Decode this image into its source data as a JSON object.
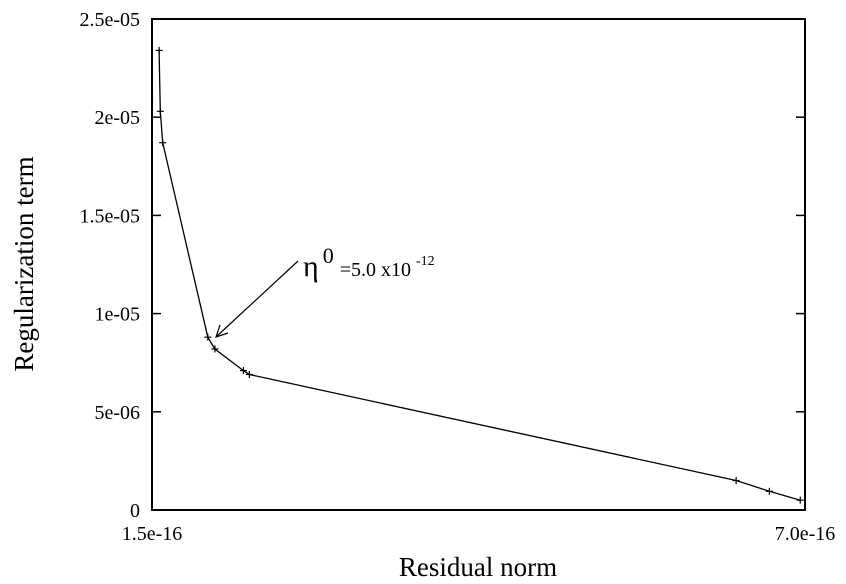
{
  "chart_data": {
    "type": "line",
    "title": "",
    "xlabel": "Residual norm",
    "ylabel": "Regularization term",
    "xlim": [
      1.5e-16,
      7e-16
    ],
    "ylim": [
      0,
      2.5e-05
    ],
    "x_ticks": [
      {
        "value": 1.5e-16,
        "label": "1.5e-16"
      },
      {
        "value": 7e-16,
        "label": "7.0e-16"
      }
    ],
    "y_ticks": [
      {
        "value": 0,
        "label": "0"
      },
      {
        "value": 5e-06,
        "label": "5e-06"
      },
      {
        "value": 1e-05,
        "label": "1e-05"
      },
      {
        "value": 1.5e-05,
        "label": "1.5e-05"
      },
      {
        "value": 2e-05,
        "label": "2e-05"
      },
      {
        "value": 2.5e-05,
        "label": "2.5e-05"
      }
    ],
    "grid": false,
    "legend": "none",
    "series": [
      {
        "color": "#000000",
        "marker": "plus",
        "x": [
          1.56e-16,
          1.57e-16,
          1.59e-16,
          1.97e-16,
          2.03e-16,
          2.27e-16,
          2.32e-16,
          6.42e-16,
          6.7e-16,
          6.96e-16
        ],
        "y": [
          2.34e-05,
          2.03e-05,
          1.87e-05,
          8.8e-06,
          8.2e-06,
          7.1e-06,
          6.9e-06,
          1.5e-06,
          9.5e-07,
          5e-07
        ]
      }
    ],
    "annotations": [
      {
        "symbol": "η",
        "superscript": "0",
        "text": "=5.0 x10",
        "exponent": "-12",
        "points_to": {
          "x": 1.97e-16,
          "y": 8.8e-06
        }
      }
    ]
  }
}
